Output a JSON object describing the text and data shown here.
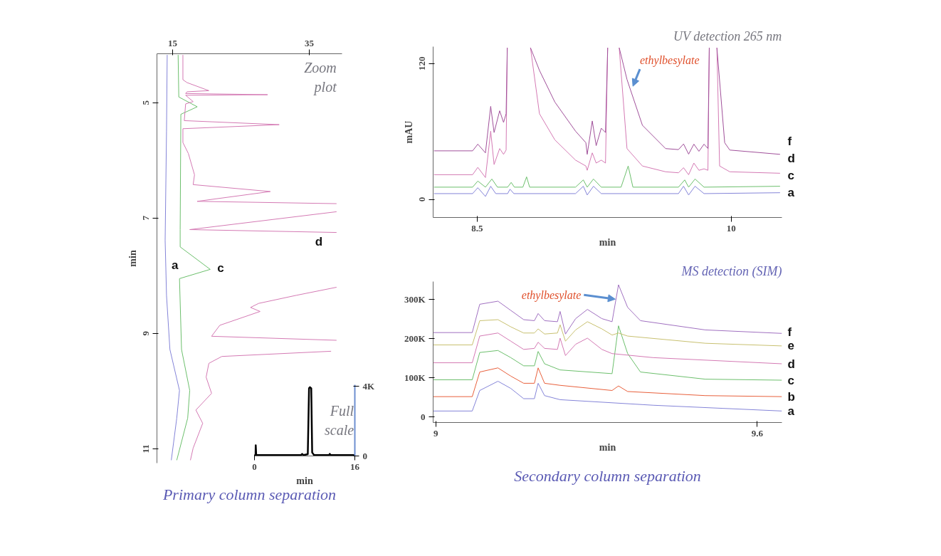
{
  "chart_data": [
    {
      "type": "line",
      "xlim": [
        12.7,
        39.8
      ],
      "xticks": [
        15,
        35
      ],
      "ylim": [
        11.25,
        4.15
      ],
      "yticks": [
        5,
        7,
        9,
        11
      ],
      "ylabel": "min",
      "annotations": [
        "Zoom plot",
        "Primary column separation"
      ],
      "series": [
        {
          "name": "a",
          "color": "#8484d8",
          "x": [
            14.2,
            14.1,
            13.9,
            14.0,
            14.1,
            14.6,
            16.0,
            15.6,
            14.8
          ],
          "values": [
            4.17,
            5.5,
            7.39,
            7.86,
            8.34,
            9.28,
            9.99,
            10.47,
            11.2
          ]
        },
        {
          "name": "c",
          "color": "#6cbf6c",
          "x": [
            15.8,
            15.9,
            18.6,
            16.2,
            16.1,
            16.1,
            20.5,
            16.0,
            16.3,
            17.5,
            17.2,
            15.6
          ],
          "values": [
            4.17,
            4.9,
            5.07,
            5.2,
            7.2,
            7.5,
            7.89,
            8.05,
            9.28,
            9.99,
            10.47,
            11.2
          ]
        },
        {
          "name": "d",
          "color": "#d47ab4",
          "x": [
            16.5,
            16.5,
            17.1,
            20.3,
            17.1,
            16.9,
            28.9,
            16.9,
            18.0,
            16.9,
            16.7,
            30.6,
            16.5,
            16.5,
            17.3,
            18.2,
            18.0,
            29.3,
            18.6,
            39.0,
            null,
            39.0,
            17.5,
            39.0,
            null,
            39.0,
            33.1,
            27.6,
            26.4,
            27.8,
            21.9,
            20.7,
            39.0,
            null,
            38.2,
            22.2,
            20.3,
            19.9,
            20.7,
            18.4,
            19.4,
            18.0,
            17.6
          ],
          "values": [
            4.17,
            4.6,
            4.65,
            4.79,
            4.81,
            4.84,
            4.86,
            4.87,
            4.98,
            5.02,
            5.31,
            5.38,
            5.45,
            5.69,
            5.88,
            6.25,
            6.42,
            6.54,
            6.71,
            6.75,
            null,
            6.89,
            7.2,
            7.25,
            null,
            8.2,
            8.34,
            8.48,
            8.55,
            8.62,
            8.86,
            9.05,
            9.12,
            null,
            9.31,
            9.4,
            9.52,
            9.76,
            10.04,
            10.33,
            10.56,
            10.99,
            11.2
          ]
        }
      ]
    },
    {
      "type": "line",
      "xlim": [
        0,
        16
      ],
      "xticks": [
        0,
        16
      ],
      "ylim": [
        0,
        4.1
      ],
      "yticks": [
        0,
        {
          "value": 4,
          "label": "4K"
        }
      ],
      "xlabel": "min",
      "annotations": [
        "Full scale"
      ],
      "series": [
        {
          "color": "#000000",
          "x": [
            0,
            0.15,
            0.2,
            0.28,
            7.4,
            7.6,
            7.8,
            8.5,
            8.7,
            8.85,
            9.05,
            9.2,
            9.5,
            11.9,
            12.0,
            12.2,
            16
          ],
          "values": [
            0.05,
            0.05,
            0.62,
            0.05,
            0.05,
            0.12,
            0.05,
            0.1,
            3.9,
            3.96,
            3.9,
            0.2,
            0.05,
            0.05,
            0.12,
            0.05,
            0.05
          ]
        }
      ]
    },
    {
      "type": "line",
      "title": "UV detection 265 nm",
      "xlim": [
        8.24,
        10.3
      ],
      "xticks": [
        8.5,
        10
      ],
      "ylim": [
        -16,
        135
      ],
      "yticks": [
        0,
        120
      ],
      "xlabel": "min",
      "ylabel": "mAU",
      "annotations": [
        {
          "text": "ethylbesylate",
          "x": 9.42,
          "y": 100
        }
      ],
      "series": [
        {
          "name": "a",
          "color": "#8484d8",
          "x": [
            8.245,
            8.473,
            8.504,
            8.549,
            8.58,
            8.61,
            8.68,
            8.694,
            8.717,
            9.081,
            9.127,
            9.15,
            9.187,
            9.233,
            9.689,
            9.719,
            9.749,
            9.787,
            9.84,
            10.289
          ],
          "values": [
            5.1,
            5.1,
            10.3,
            2.6,
            11.6,
            5.1,
            5.1,
            9.0,
            5.1,
            5.1,
            11.6,
            3.9,
            11.6,
            5.1,
            5.1,
            11.6,
            3.9,
            11.6,
            5.1,
            5.9
          ]
        },
        {
          "name": "c",
          "color": "#6cbf6c",
          "x": [
            8.245,
            8.473,
            8.504,
            8.549,
            8.587,
            8.62,
            8.68,
            8.701,
            8.72,
            8.77,
            8.792,
            8.81,
            9.081,
            9.127,
            9.15,
            9.187,
            9.233,
            9.35,
            9.392,
            9.42,
            9.689,
            9.726,
            9.749,
            9.787,
            9.84,
            10.289
          ],
          "values": [
            10.8,
            10.8,
            16.2,
            10.8,
            18.0,
            10.8,
            10.8,
            15.0,
            10.8,
            10.8,
            19.9,
            10.8,
            10.8,
            17.2,
            10.8,
            18.0,
            10.8,
            10.8,
            29.5,
            10.8,
            10.8,
            17.2,
            10.8,
            18.0,
            10.8,
            11.6
          ]
        },
        {
          "name": "d",
          "color": "#d47ab4",
          "x": [
            8.245,
            8.473,
            8.504,
            8.549,
            8.58,
            8.6,
            8.633,
            8.656,
            8.671,
            8.678,
            8.75,
            8.815,
            8.868,
            8.959,
            9.081,
            9.142,
            9.15,
            9.18,
            9.203,
            9.233,
            9.258,
            9.271,
            9.3,
            9.339,
            9.385,
            9.476,
            9.613,
            9.689,
            9.719,
            9.749,
            9.78,
            9.81,
            9.84,
            9.863,
            9.871,
            9.89,
            9.916,
            9.932,
            9.992,
            10.289
          ],
          "values": [
            21.8,
            21.8,
            28.3,
            19.3,
            60.3,
            30.8,
            44.9,
            39.8,
            43.6,
            134,
            null,
            134,
            75.7,
            52.6,
            34.7,
            29.5,
            25.7,
            41.1,
            32.1,
            34.7,
            32.1,
            134,
            null,
            134,
            44.9,
            29.5,
            24.4,
            23.5,
            28.0,
            21.8,
            32.1,
            25.7,
            27.0,
            25.7,
            134,
            null,
            134,
            29.5,
            24.4,
            23.1
          ]
        },
        {
          "name": "f",
          "color": "#a0509a",
          "x": [
            8.245,
            8.473,
            8.504,
            8.549,
            8.58,
            8.6,
            8.633,
            8.656,
            8.671,
            8.678,
            8.75,
            8.815,
            8.868,
            8.959,
            9.081,
            9.142,
            9.15,
            9.18,
            9.203,
            9.233,
            9.258,
            9.271,
            9.3,
            9.339,
            9.385,
            9.476,
            9.613,
            9.689,
            9.719,
            9.749,
            9.78,
            9.81,
            9.84,
            9.863,
            9.871,
            9.89,
            9.916,
            9.962,
            9.992,
            10.289
          ],
          "values": [
            42.9,
            42.9,
            48.8,
            41.1,
            82.2,
            59.1,
            78.3,
            68.0,
            75.7,
            134,
            null,
            134,
            114,
            86.0,
            60.3,
            50.1,
            39.8,
            69.3,
            47.5,
            62.9,
            59.1,
            134,
            null,
            134,
            106,
            65.5,
            44.9,
            44.0,
            49.0,
            40.0,
            48.8,
            42.5,
            48.8,
            45.0,
            134,
            null,
            134,
            50.1,
            43.6,
            39.8
          ]
        }
      ]
    },
    {
      "type": "line",
      "title": "MS detection (SIM)",
      "xlim": [
        8.995,
        9.646
      ],
      "xticks": [
        9,
        9.6
      ],
      "ylim": [
        -15,
        345
      ],
      "yticks": [
        0,
        {
          "value": 100,
          "label": "100K"
        },
        {
          "value": 200,
          "label": "200K"
        },
        {
          "value": 300,
          "label": "300K"
        }
      ],
      "xlabel": "min",
      "annotations": [
        {
          "text": "ethylbesylate",
          "x": 9.335,
          "y": 300
        },
        "Secondary column separation"
      ],
      "series": [
        {
          "name": "a",
          "color": "#8484d8",
          "x": [
            8.995,
            9.068,
            9.082,
            9.116,
            9.14,
            9.164,
            9.184,
            9.191,
            9.203,
            9.232,
            9.406,
            9.646
          ],
          "values": [
            14.4,
            14.4,
            66.8,
            90.4,
            72.1,
            45.9,
            45.9,
            85.2,
            53.7,
            43.3,
            29.1,
            14.4
          ]
        },
        {
          "name": "b",
          "color": "#e8603c",
          "x": [
            8.995,
            9.068,
            9.082,
            9.116,
            9.14,
            9.164,
            9.184,
            9.191,
            9.203,
            9.232,
            9.329,
            9.341,
            9.358,
            9.503,
            9.646
          ],
          "values": [
            51.1,
            51.1,
            114,
            124.5,
            103.5,
            85.2,
            85.2,
            124.5,
            85.2,
            80.0,
            66.8,
            78.4,
            64.2,
            53.7,
            51.1
          ]
        },
        {
          "name": "c",
          "color": "#6cbf6c",
          "x": [
            8.995,
            9.068,
            9.082,
            9.116,
            9.14,
            9.164,
            9.184,
            9.191,
            9.203,
            9.232,
            9.329,
            9.341,
            9.358,
            9.382,
            9.503,
            9.646
          ],
          "values": [
            94.1,
            94.1,
            163.8,
            169.0,
            150.7,
            129.8,
            129.8,
            166.5,
            135.0,
            119.3,
            109.8,
            232.0,
            161.2,
            114.0,
            95.7,
            93.1
          ]
        },
        {
          "name": "d",
          "color": "#d47ab4",
          "x": [
            8.995,
            9.068,
            9.082,
            9.116,
            9.14,
            9.164,
            9.184,
            9.191,
            9.203,
            9.227,
            9.232,
            9.242,
            9.261,
            9.283,
            9.31,
            9.329,
            9.406,
            9.646
          ],
          "values": [
            137.6,
            137.6,
            205.8,
            213.6,
            192.7,
            171.7,
            174.3,
            190.0,
            174.3,
            171.7,
            200.5,
            156.0,
            184.8,
            200.5,
            171.7,
            161.0,
            150.7,
            135.0
          ]
        },
        {
          "name": "e",
          "color": "#c8c070",
          "x": [
            8.995,
            9.068,
            9.082,
            9.116,
            9.14,
            9.164,
            9.184,
            9.191,
            9.203,
            9.227,
            9.232,
            9.242,
            9.261,
            9.283,
            9.31,
            9.329,
            9.341,
            9.358,
            9.503,
            9.646
          ],
          "values": [
            183.2,
            183.2,
            245.0,
            247.7,
            229.4,
            213.6,
            213.6,
            224.1,
            211.0,
            213.6,
            234.6,
            192.7,
            221.5,
            242.5,
            224.1,
            208.4,
            213.6,
            205.8,
            187.4,
            180.6
          ]
        },
        {
          "name": "f",
          "color": "#a070c0",
          "x": [
            8.995,
            9.068,
            9.082,
            9.116,
            9.14,
            9.164,
            9.184,
            9.191,
            9.203,
            9.227,
            9.232,
            9.242,
            9.261,
            9.283,
            9.31,
            9.329,
            9.341,
            9.358,
            9.382,
            9.503,
            9.646
          ],
          "values": [
            214.7,
            214.7,
            287.0,
            294.9,
            271.3,
            247.7,
            245.1,
            263.4,
            245.1,
            242.5,
            268.7,
            211.0,
            250.3,
            273.9,
            250.3,
            242.5,
            336.8,
            279.2,
            245.1,
            221.5,
            212.6
          ]
        }
      ]
    }
  ]
}
